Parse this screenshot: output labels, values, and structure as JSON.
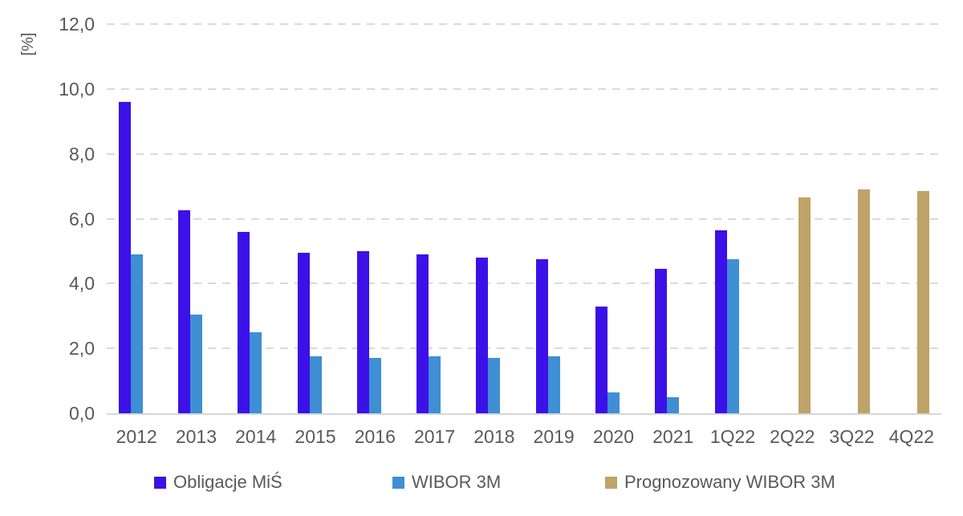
{
  "chart_data": {
    "type": "bar",
    "title": "",
    "ylabel": "[%]",
    "xlabel": "",
    "ylim": [
      0,
      12
    ],
    "ytick_step": 2,
    "ytick_labels": [
      "0,0",
      "2,0",
      "4,0",
      "6,0",
      "8,0",
      "10,0",
      "12,0"
    ],
    "grid": "horizontal-dashed",
    "legend_position": "bottom",
    "categories": [
      "2012",
      "2013",
      "2014",
      "2015",
      "2016",
      "2017",
      "2018",
      "2019",
      "2020",
      "2021",
      "1Q22",
      "2Q22",
      "3Q22",
      "4Q22"
    ],
    "series": [
      {
        "name": "Obligacje MiŚ",
        "color": "#3b11e8",
        "values": [
          9.6,
          6.25,
          5.6,
          4.95,
          5.0,
          4.9,
          4.8,
          4.75,
          3.3,
          4.45,
          5.65,
          null,
          null,
          null
        ]
      },
      {
        "name": "WIBOR 3M",
        "color": "#3e8fd4",
        "values": [
          4.9,
          3.05,
          2.5,
          1.75,
          1.7,
          1.75,
          1.7,
          1.75,
          0.65,
          0.5,
          4.75,
          null,
          null,
          null
        ]
      },
      {
        "name": "Prognozowany WIBOR 3M",
        "color": "#bfa368",
        "values": [
          null,
          null,
          null,
          null,
          null,
          null,
          null,
          null,
          null,
          null,
          null,
          6.65,
          6.9,
          6.85
        ]
      }
    ],
    "colors": {
      "grid": "#dadada",
      "axis_line": "#d6d6d6",
      "text": "#595959",
      "background": "#ffffff"
    },
    "legend_x_positions": [
      192,
      489,
      754
    ]
  }
}
